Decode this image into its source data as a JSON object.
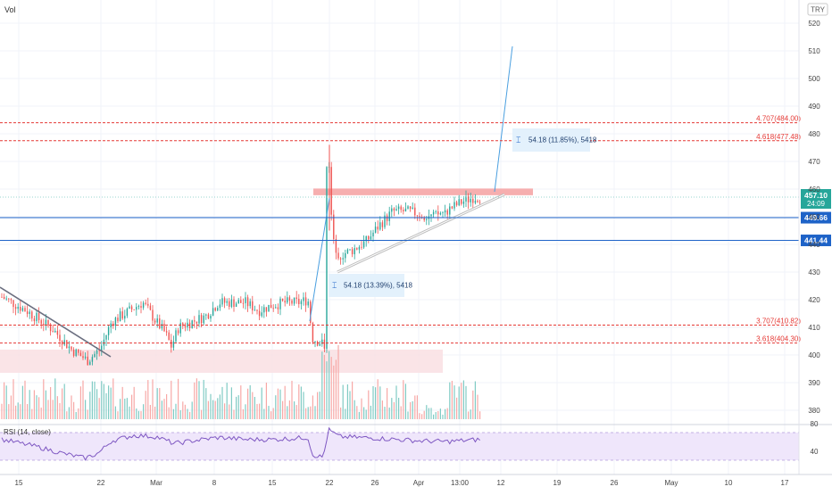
{
  "chart_data": {
    "type": "candlestick",
    "vol_label": "Vol",
    "currency_badge": "TRY",
    "price_axis": {
      "ticks": [
        380,
        390,
        400,
        410,
        420,
        430,
        440,
        450,
        460,
        470,
        480,
        490,
        500,
        510,
        520
      ],
      "range": [
        377,
        524
      ]
    },
    "x_axis": {
      "labels": [
        "15",
        "22",
        "Mar",
        "8",
        "15",
        "22",
        "26",
        "Apr",
        "13:00",
        "12",
        "19",
        "26",
        "May",
        "10",
        "17"
      ]
    },
    "horizontal_levels": [
      {
        "label": "4.707(484.00)",
        "value": 484.0,
        "style": "dashed",
        "color": "#e53935"
      },
      {
        "label": "4.618(477.48)",
        "value": 477.48,
        "style": "dashed",
        "color": "#e53935"
      },
      {
        "label": "3.707(410.82)",
        "value": 410.82,
        "style": "dashed",
        "color": "#e53935"
      },
      {
        "label": "3.618(404.30)",
        "value": 404.3,
        "style": "dashed",
        "color": "#e53935"
      },
      {
        "label": "449.66",
        "value": 449.66,
        "style": "solid",
        "color": "#1e63c8"
      },
      {
        "label": "441.44",
        "value": 441.44,
        "style": "solid",
        "color": "#1e63c8"
      }
    ],
    "last_price": {
      "value": "457.10",
      "countdown": "24:09",
      "color": "#26a69a"
    },
    "measurements": [
      {
        "text": "54.18 (11.85%), 5418"
      },
      {
        "text": "54.18 (13.39%), 5418"
      }
    ],
    "projection": {
      "from": 458,
      "to": 511
    },
    "rsi": {
      "label": "RSI (14, close)",
      "ticks": [
        "80",
        "40"
      ],
      "upper": 70,
      "lower": 30
    },
    "colors": {
      "up": "#26a69a",
      "down": "#ef5350",
      "up_volume": "#80cbc4",
      "down_volume": "#f7a8a6",
      "rsi_line": "#7e57c2",
      "rsi_band": "#efe6fb",
      "resistance_zone": "#f5a6a6",
      "support_zone": "#f9dfe3",
      "measure_box": "#e3f1fc",
      "trendline": "#bdbdbd"
    }
  }
}
